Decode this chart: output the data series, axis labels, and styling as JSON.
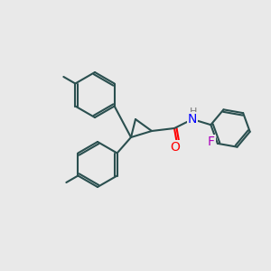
{
  "background_color": "#e9e9e9",
  "bond_color": "#2a4f4f",
  "lw": 1.5,
  "atom_labels": {
    "N": {
      "color": "#0000ff",
      "fontsize": 9
    },
    "H": {
      "color": "#808080",
      "fontsize": 8
    },
    "O": {
      "color": "#ff0000",
      "fontsize": 9
    },
    "F": {
      "color": "#9900aa",
      "fontsize": 9
    }
  },
  "scale": 300
}
